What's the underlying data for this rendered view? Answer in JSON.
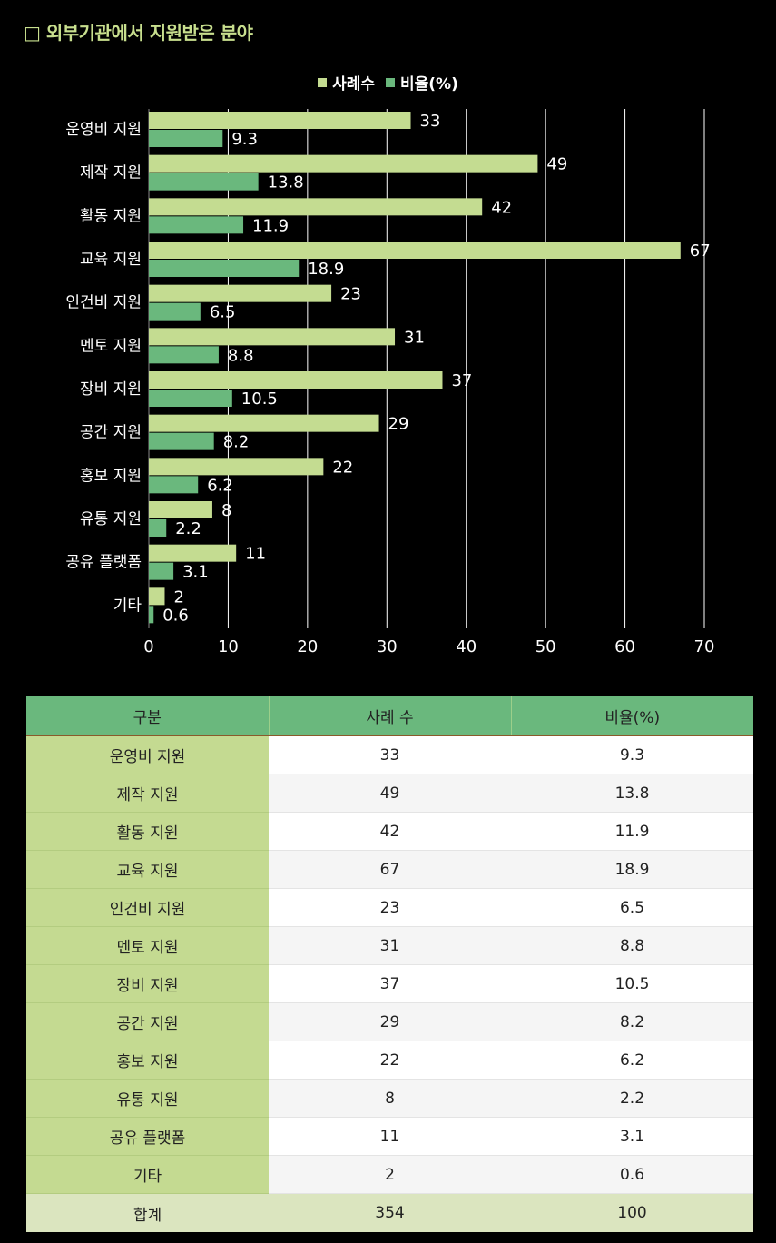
{
  "title": "□ 외부기관에서 지원받은 분야",
  "colors": {
    "series1": "#c4dc91",
    "series2": "#6ab87d",
    "grid": "#ffffff"
  },
  "chart_data": {
    "type": "bar",
    "orientation": "horizontal",
    "categories": [
      "운영비 지원",
      "제작 지원",
      "활동 지원",
      "교육 지원",
      "인건비 지원",
      "멘토 지원",
      "장비 지원",
      "공간 지원",
      "홍보 지원",
      "유통 지원",
      "공유 플랫폼",
      "기타"
    ],
    "series": [
      {
        "name": "사례수",
        "values": [
          33,
          49,
          42,
          67,
          23,
          31,
          37,
          29,
          22,
          8,
          11,
          2
        ]
      },
      {
        "name": "비율(%)",
        "values": [
          9.3,
          13.8,
          11.9,
          18.9,
          6.5,
          8.8,
          10.5,
          8.2,
          6.2,
          2.2,
          3.1,
          0.6
        ]
      }
    ],
    "xlim": [
      0,
      70
    ],
    "xticks": [
      "0",
      "10",
      "20",
      "30",
      "40",
      "50",
      "60",
      "70"
    ],
    "grid": true,
    "legend": "top-center",
    "value_labels": [
      [
        "33",
        "49",
        "42",
        "67",
        "23",
        "31",
        "37",
        "29",
        "22",
        "8",
        "11",
        "2"
      ],
      [
        "9.3",
        "13.8",
        "11.9",
        "18.9",
        "6.5",
        "8.8",
        "10.5",
        "8.2",
        "6.2",
        "2.2",
        "3.1",
        "0.6"
      ]
    ]
  },
  "table": {
    "headers": [
      "구분",
      "사례 수",
      "비율(%)"
    ],
    "rows": [
      [
        "운영비 지원",
        "33",
        "9.3"
      ],
      [
        "제작 지원",
        "49",
        "13.8"
      ],
      [
        "활동 지원",
        "42",
        "11.9"
      ],
      [
        "교육 지원",
        "67",
        "18.9"
      ],
      [
        "인건비 지원",
        "23",
        "6.5"
      ],
      [
        "멘토 지원",
        "31",
        "8.8"
      ],
      [
        "장비 지원",
        "37",
        "10.5"
      ],
      [
        "공간 지원",
        "29",
        "8.2"
      ],
      [
        "홍보 지원",
        "22",
        "6.2"
      ],
      [
        "유통 지원",
        "8",
        "2.2"
      ],
      [
        "공유 플랫폼",
        "11",
        "3.1"
      ],
      [
        "기타",
        "2",
        "0.6"
      ]
    ],
    "total": [
      "합계",
      "354",
      "100"
    ]
  }
}
